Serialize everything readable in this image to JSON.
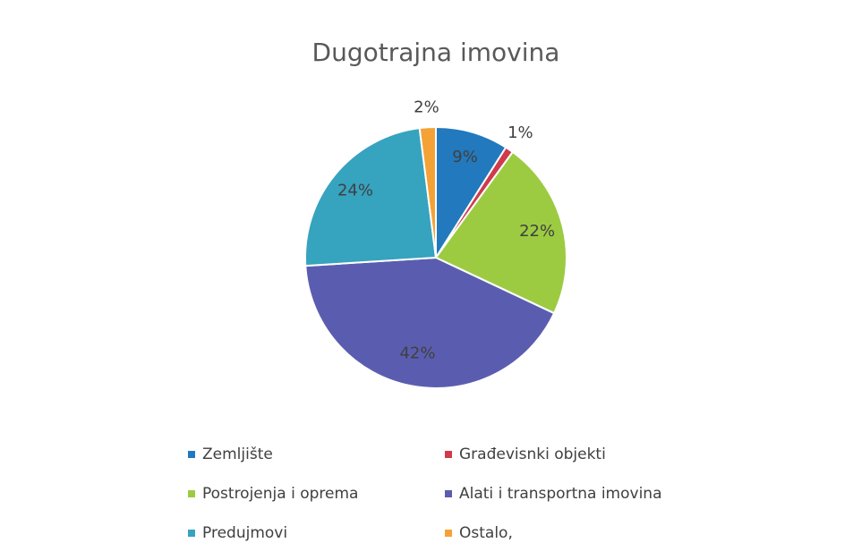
{
  "chart_data": {
    "type": "pie",
    "title": "Dugotrajna imovina",
    "categories": [
      "Zemljište",
      "Građevisnki objekti",
      "Postrojenja i oprema",
      "Alati i transportna imovina",
      "Predujmovi",
      "Ostalo,"
    ],
    "values": [
      9,
      1,
      22,
      42,
      24,
      2
    ],
    "value_labels": [
      "9%",
      "1%",
      "22%",
      "42%",
      "24%",
      "2%"
    ],
    "colors": [
      "#2279bd",
      "#cf3a4c",
      "#9ccb42",
      "#5a5daf",
      "#36a3bf",
      "#f4a236"
    ]
  }
}
